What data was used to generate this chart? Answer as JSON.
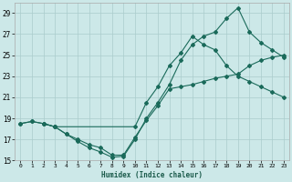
{
  "xlabel": "Humidex (Indice chaleur)",
  "bg_color": "#cce8e8",
  "grid_color": "#aacccc",
  "line_color": "#1a6a5a",
  "xlim": [
    -0.5,
    23.5
  ],
  "ylim": [
    15,
    30
  ],
  "yticks": [
    15,
    17,
    19,
    21,
    23,
    25,
    27,
    29
  ],
  "xticks": [
    0,
    1,
    2,
    3,
    4,
    5,
    6,
    7,
    8,
    9,
    10,
    11,
    12,
    13,
    14,
    15,
    16,
    17,
    18,
    19,
    20,
    21,
    22,
    23
  ],
  "line1_x": [
    0,
    1,
    2,
    3,
    4,
    5,
    6,
    7,
    8,
    9,
    10,
    11,
    12,
    13,
    14,
    15,
    16,
    17,
    18,
    19,
    20,
    21,
    22,
    23
  ],
  "line1_y": [
    18.5,
    18.7,
    18.5,
    18.2,
    17.5,
    17.0,
    16.5,
    16.2,
    15.5,
    15.5,
    17.2,
    18.8,
    20.2,
    21.8,
    22.0,
    22.2,
    22.5,
    22.8,
    23.0,
    23.2,
    24.0,
    24.5,
    24.8,
    25.0
  ],
  "line2_x": [
    0,
    1,
    2,
    3,
    4,
    5,
    6,
    7,
    8,
    9,
    10,
    11,
    12,
    13,
    14,
    15,
    16,
    17,
    18,
    19,
    20,
    21,
    22,
    23
  ],
  "line2_y": [
    18.5,
    18.7,
    18.5,
    18.2,
    17.5,
    16.8,
    16.2,
    15.8,
    15.3,
    15.4,
    17.0,
    19.0,
    20.5,
    22.2,
    24.5,
    26.0,
    26.8,
    27.2,
    28.5,
    29.5,
    27.2,
    26.2,
    25.5,
    24.8
  ],
  "line3_x": [
    2,
    3,
    10,
    11,
    12,
    13,
    14,
    15,
    16,
    17,
    18,
    19,
    20,
    21,
    22,
    23
  ],
  "line3_y": [
    18.5,
    18.2,
    18.2,
    20.5,
    22.0,
    24.0,
    25.2,
    26.8,
    26.0,
    25.5,
    24.0,
    23.0,
    22.5,
    22.0,
    21.5,
    21.0
  ]
}
